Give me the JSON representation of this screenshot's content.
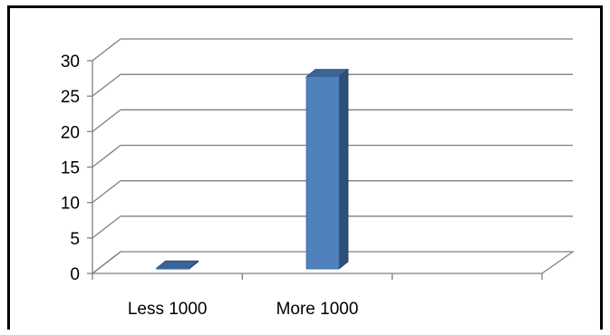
{
  "chart_data": {
    "type": "bar",
    "categories": [
      "Less 1000",
      "More 1000",
      ""
    ],
    "values": [
      1,
      28,
      0
    ],
    "title": "",
    "xlabel": "",
    "ylabel": "",
    "ylim": [
      0,
      30
    ],
    "yticks": [
      "0",
      "5",
      "10",
      "15",
      "20",
      "25",
      "30"
    ],
    "grid": true,
    "legend": "none",
    "style": "3d-column"
  },
  "colors": {
    "bar_front": "#4f81bd",
    "bar_side": "#2e4f7a",
    "bar_top": "#3b6596",
    "grid": "#7f7f7f",
    "frame": "#000000"
  }
}
